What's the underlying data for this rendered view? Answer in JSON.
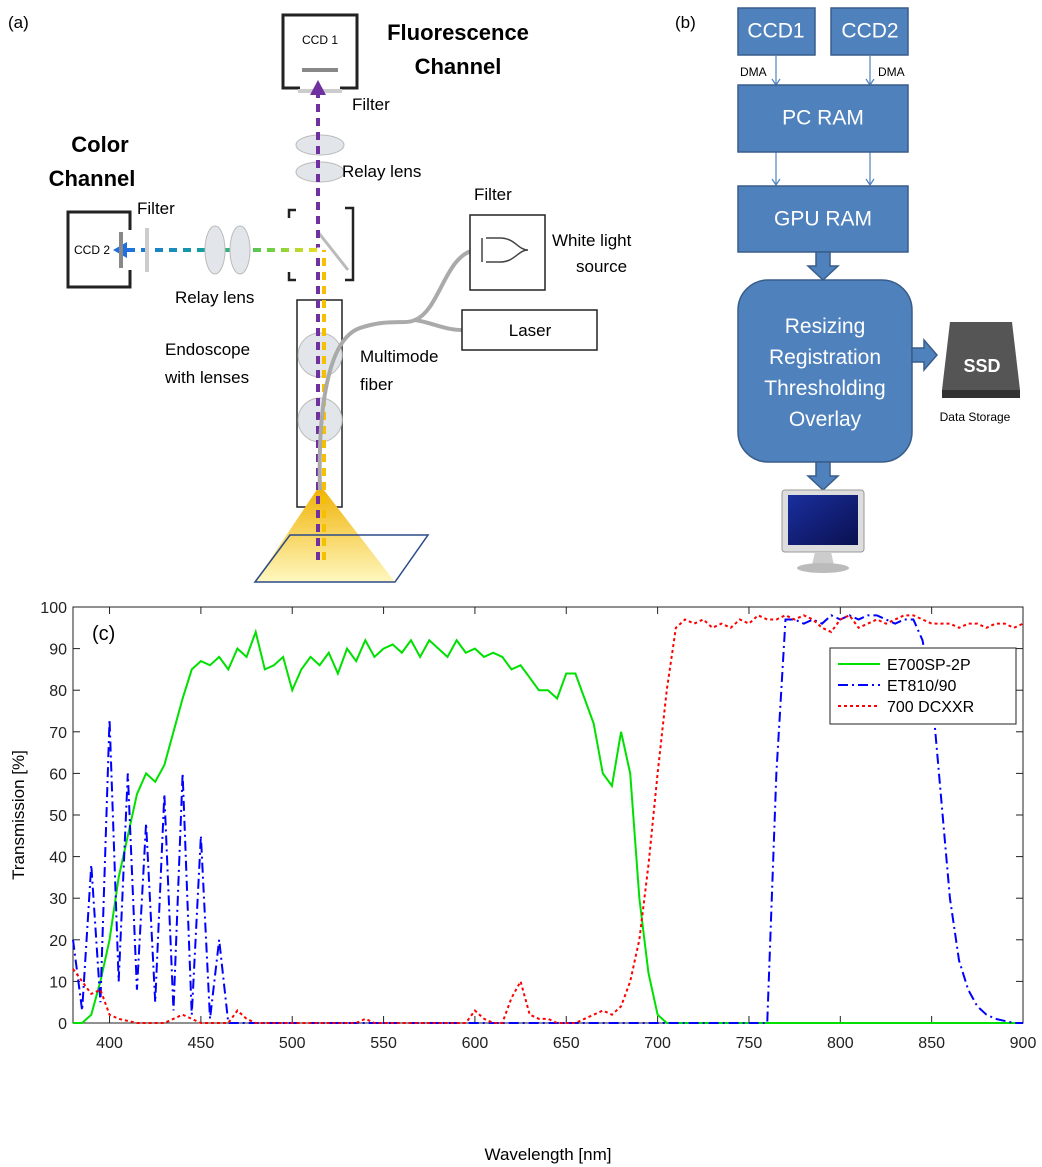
{
  "panel_a": {
    "label": "(a)",
    "ccd1": "CCD 1",
    "fluor": [
      "Fluorescence",
      "Channel"
    ],
    "filter_top": "Filter",
    "relay_top": "Relay lens",
    "color": [
      "Color",
      "Channel"
    ],
    "filter_left": "Filter",
    "ccd2": "CCD 2",
    "relay_left": "Relay lens",
    "filter_light": "Filter",
    "white_light": [
      "White light",
      "source"
    ],
    "laser": "Laser",
    "fiber": [
      "Multimode",
      "fiber"
    ],
    "endoscope": [
      "Endoscope",
      "with lenses"
    ]
  },
  "panel_b": {
    "label": "(b)",
    "ccd1": "CCD1",
    "ccd2": "CCD2",
    "dma1": "DMA",
    "dma2": "DMA",
    "pc_ram": "PC RAM",
    "gpu_ram": "GPU RAM",
    "process": [
      "Resizing",
      "Registration",
      "Thresholding",
      "Overlay"
    ],
    "ssd": "SSD",
    "storage": "Data Storage"
  },
  "chart_data": {
    "type": "line",
    "panel_label": "(c)",
    "x_label": "Wavelength [nm]",
    "y_label": "Transmission [%]",
    "xlim": [
      380,
      900
    ],
    "ylim": [
      0,
      100
    ],
    "xticks": [
      400,
      450,
      500,
      550,
      600,
      650,
      700,
      750,
      800,
      850,
      900
    ],
    "yticks": [
      0,
      10,
      20,
      30,
      40,
      50,
      60,
      70,
      80,
      90,
      100
    ],
    "grid": false,
    "legend": "upper right",
    "x": [
      380,
      385,
      390,
      395,
      400,
      405,
      410,
      415,
      420,
      425,
      430,
      435,
      440,
      445,
      450,
      455,
      460,
      465,
      470,
      475,
      480,
      485,
      490,
      495,
      500,
      505,
      510,
      515,
      520,
      525,
      530,
      535,
      540,
      545,
      550,
      555,
      560,
      565,
      570,
      575,
      580,
      585,
      590,
      595,
      600,
      605,
      610,
      615,
      620,
      625,
      630,
      635,
      640,
      645,
      650,
      655,
      660,
      665,
      670,
      675,
      680,
      685,
      690,
      695,
      700,
      705,
      710,
      715,
      720,
      725,
      730,
      735,
      740,
      745,
      750,
      755,
      760,
      765,
      770,
      775,
      780,
      785,
      790,
      795,
      800,
      805,
      810,
      815,
      820,
      825,
      830,
      835,
      840,
      845,
      850,
      855,
      860,
      865,
      870,
      875,
      880,
      885,
      890,
      895,
      900
    ],
    "series": [
      {
        "name": "E700SP-2P",
        "color": "#00e000",
        "linestyle": "solid",
        "values": [
          0,
          0,
          2,
          10,
          20,
          35,
          45,
          55,
          60,
          58,
          62,
          70,
          78,
          85,
          87,
          86,
          88,
          85,
          90,
          88,
          94,
          85,
          86,
          88,
          80,
          85,
          88,
          86,
          89,
          84,
          90,
          87,
          92,
          88,
          90,
          91,
          89,
          92,
          88,
          92,
          90,
          88,
          92,
          89,
          90,
          88,
          89,
          88,
          85,
          86,
          83,
          80,
          80,
          78,
          84,
          84,
          78,
          72,
          60,
          57,
          70,
          60,
          30,
          12,
          2,
          0,
          0,
          0,
          0,
          0,
          0,
          0,
          0,
          0,
          0,
          0,
          0,
          0,
          0,
          0,
          0,
          0,
          0,
          0,
          0,
          0,
          0,
          0,
          0,
          0,
          0,
          0,
          0,
          0,
          0,
          0,
          0,
          0,
          0,
          0,
          0,
          0,
          0,
          0,
          0
        ]
      },
      {
        "name": "ET810/90",
        "color": "#0000ff",
        "linestyle": "dashdot",
        "values": [
          20,
          3,
          38,
          5,
          73,
          10,
          60,
          8,
          48,
          5,
          55,
          3,
          60,
          2,
          45,
          1,
          20,
          0,
          0,
          0,
          0,
          0,
          0,
          0,
          0,
          0,
          0,
          0,
          0,
          0,
          0,
          0,
          0,
          0,
          0,
          0,
          0,
          0,
          0,
          0,
          0,
          0,
          0,
          0,
          0,
          0,
          0,
          0,
          0,
          0,
          0,
          0,
          0,
          0,
          0,
          0,
          0,
          0,
          0,
          0,
          0,
          0,
          0,
          0,
          0,
          0,
          0,
          0,
          0,
          0,
          0,
          0,
          0,
          0,
          0,
          0,
          0,
          60,
          97,
          97,
          96,
          97,
          96,
          98,
          97,
          98,
          97,
          98,
          98,
          97,
          96,
          97,
          97,
          92,
          80,
          55,
          30,
          15,
          8,
          4,
          2,
          1,
          0.5,
          0,
          0
        ]
      },
      {
        "name": "700 DCXXR",
        "color": "#ff0000",
        "linestyle": "dotted",
        "values": [
          13,
          10,
          7,
          8,
          2,
          1,
          0.5,
          0,
          0,
          0,
          0,
          1,
          2,
          1,
          0,
          0,
          0,
          0,
          3,
          1,
          0,
          0,
          0,
          0,
          0,
          0,
          0,
          0,
          0,
          0,
          0,
          0,
          1,
          0,
          0,
          0,
          0,
          0,
          0,
          0,
          0,
          0,
          0,
          0,
          3,
          1,
          0,
          0,
          6,
          10,
          2,
          1,
          1,
          0,
          0,
          0,
          1,
          2,
          3,
          2,
          4,
          10,
          20,
          38,
          60,
          80,
          95,
          97,
          96,
          97,
          95,
          96,
          95,
          97,
          96,
          98,
          97,
          97,
          98,
          97,
          98,
          97,
          95,
          94,
          97,
          98,
          95,
          96,
          97,
          96,
          97,
          98,
          98,
          97,
          96,
          96,
          96,
          95,
          96,
          96,
          95,
          96,
          96,
          95,
          96
        ]
      }
    ]
  }
}
